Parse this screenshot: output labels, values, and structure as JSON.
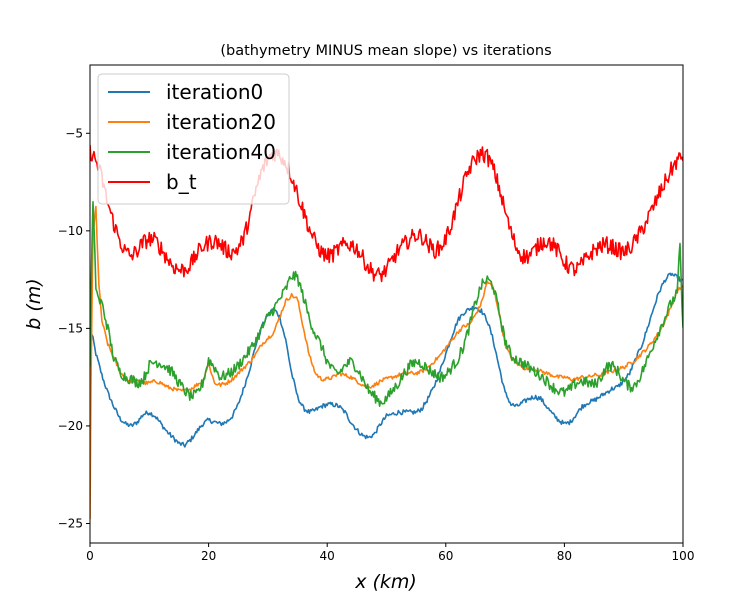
{
  "chart_data": {
    "type": "line",
    "title": "(bathymetry MINUS mean slope) vs iterations",
    "xlabel": "x (km)",
    "ylabel": "b (m)",
    "xlim": [
      0,
      100
    ],
    "ylim": [
      -26,
      -1.5
    ],
    "xticks": [
      "0",
      "20",
      "40",
      "60",
      "80",
      "100"
    ],
    "yticks": [
      "−25",
      "−20",
      "−15",
      "−10",
      "−5"
    ],
    "grid": false,
    "legend_position": "top-left",
    "series": [
      {
        "name": "iteration0",
        "color": "#1f77b4",
        "noise": 0.12,
        "x": [
          0,
          0.4,
          1,
          2,
          3,
          4,
          5,
          6,
          7,
          8,
          9,
          10,
          11,
          12,
          13,
          14,
          15,
          16,
          17,
          18,
          19,
          20,
          21,
          22,
          23,
          24,
          25,
          26,
          27,
          28,
          29,
          30,
          31,
          32,
          33,
          34,
          35,
          36,
          37,
          38,
          39,
          40,
          41,
          42,
          43,
          44,
          45,
          46,
          47,
          48,
          49,
          50,
          51,
          52,
          53,
          54,
          55,
          56,
          57,
          58,
          59,
          60,
          61,
          62,
          63,
          64,
          65,
          66,
          67,
          68,
          69,
          70,
          71,
          72,
          73,
          74,
          75,
          76,
          77,
          78,
          79,
          80,
          81,
          82,
          83,
          84,
          85,
          86,
          87,
          88,
          89,
          90,
          91,
          92,
          93,
          94,
          95,
          96,
          97,
          98,
          99,
          100
        ],
        "y": [
          -15.2,
          -15.4,
          -16.3,
          -17.4,
          -18.3,
          -19.0,
          -19.6,
          -19.9,
          -20.0,
          -19.8,
          -19.4,
          -19.3,
          -19.5,
          -19.9,
          -20.3,
          -20.6,
          -20.9,
          -21.0,
          -20.7,
          -20.3,
          -19.9,
          -19.7,
          -19.8,
          -19.9,
          -19.8,
          -19.5,
          -18.9,
          -18.0,
          -17.0,
          -15.8,
          -14.9,
          -14.3,
          -14.0,
          -14.4,
          -15.6,
          -17.3,
          -18.5,
          -19.1,
          -19.3,
          -19.2,
          -19.0,
          -18.9,
          -18.9,
          -19.0,
          -19.3,
          -19.8,
          -20.2,
          -20.5,
          -20.6,
          -20.4,
          -19.9,
          -19.5,
          -19.4,
          -19.3,
          -19.3,
          -19.3,
          -19.3,
          -19.1,
          -18.6,
          -18.0,
          -17.2,
          -16.3,
          -15.4,
          -14.6,
          -14.2,
          -14.0,
          -13.9,
          -14.1,
          -14.6,
          -15.6,
          -17.0,
          -18.3,
          -18.9,
          -19.0,
          -18.8,
          -18.6,
          -18.5,
          -18.6,
          -19.0,
          -19.4,
          -19.7,
          -19.9,
          -19.8,
          -19.4,
          -19.0,
          -18.8,
          -18.7,
          -18.5,
          -18.3,
          -18.1,
          -18.0,
          -17.7,
          -17.3,
          -16.6,
          -15.9,
          -15.0,
          -14.0,
          -13.1,
          -12.5,
          -12.2,
          -12.4,
          -12.6
        ]
      },
      {
        "name": "iteration20",
        "color": "#ff7f0e",
        "noise": 0.1,
        "x": [
          0,
          0.2,
          0.5,
          1,
          1.5,
          2,
          3,
          4,
          5,
          6,
          7,
          8,
          9,
          10,
          11,
          12,
          13,
          14,
          15,
          16,
          17,
          18,
          19,
          20,
          21,
          22,
          23,
          24,
          25,
          26,
          27,
          28,
          29,
          30,
          31,
          32,
          33,
          34,
          35,
          36,
          37,
          38,
          39,
          40,
          41,
          42,
          43,
          44,
          45,
          46,
          47,
          48,
          49,
          50,
          51,
          52,
          53,
          54,
          55,
          56,
          57,
          58,
          59,
          60,
          61,
          62,
          63,
          64,
          65,
          66,
          67,
          68,
          69,
          70,
          71,
          72,
          73,
          74,
          75,
          76,
          77,
          78,
          79,
          80,
          81,
          82,
          83,
          84,
          85,
          86,
          87,
          88,
          89,
          90,
          91,
          92,
          93,
          94,
          95,
          96,
          97,
          98,
          99,
          100
        ],
        "y": [
          -24.8,
          -16.5,
          -10.2,
          -8.8,
          -12.8,
          -14.6,
          -15.8,
          -16.5,
          -17.2,
          -17.6,
          -17.7,
          -17.7,
          -17.8,
          -17.8,
          -17.7,
          -17.8,
          -18.0,
          -18.1,
          -18.2,
          -18.2,
          -18.1,
          -17.9,
          -17.7,
          -16.8,
          -17.8,
          -17.9,
          -17.8,
          -17.6,
          -17.3,
          -17.0,
          -16.7,
          -16.3,
          -15.8,
          -15.5,
          -15.2,
          -14.4,
          -13.6,
          -13.3,
          -13.5,
          -15.0,
          -16.4,
          -17.3,
          -17.6,
          -17.6,
          -17.5,
          -17.3,
          -17.4,
          -17.5,
          -17.7,
          -17.9,
          -18.0,
          -17.9,
          -17.7,
          -17.6,
          -17.5,
          -17.4,
          -17.3,
          -17.3,
          -17.3,
          -17.2,
          -17.0,
          -16.7,
          -16.4,
          -16.0,
          -15.6,
          -15.2,
          -14.9,
          -14.8,
          -14.3,
          -13.7,
          -12.6,
          -12.9,
          -14.2,
          -15.8,
          -16.5,
          -16.8,
          -17.0,
          -17.1,
          -17.1,
          -17.2,
          -17.3,
          -17.4,
          -17.5,
          -17.5,
          -17.6,
          -17.6,
          -17.5,
          -17.5,
          -17.4,
          -17.4,
          -17.3,
          -17.2,
          -17.1,
          -17.0,
          -16.8,
          -16.6,
          -16.3,
          -16.0,
          -15.6,
          -15.2,
          -14.6,
          -13.9,
          -13.1,
          -12.8
        ]
      },
      {
        "name": "iteration40",
        "color": "#2ca02c",
        "noise": 0.28,
        "x": [
          0,
          0.2,
          0.5,
          1,
          1.5,
          2,
          3,
          4,
          5,
          6,
          7,
          8,
          9,
          10,
          11,
          12,
          13,
          14,
          15,
          16,
          17,
          18,
          19,
          20,
          21,
          22,
          23,
          24,
          25,
          26,
          27,
          28,
          29,
          30,
          31,
          32,
          33,
          34,
          35,
          36,
          37,
          38,
          39,
          40,
          41,
          42,
          43,
          44,
          45,
          46,
          47,
          48,
          49,
          50,
          51,
          52,
          53,
          54,
          55,
          56,
          57,
          58,
          59,
          60,
          61,
          62,
          63,
          64,
          65,
          66,
          67,
          68,
          69,
          70,
          71,
          72,
          73,
          74,
          75,
          76,
          77,
          78,
          79,
          80,
          81,
          82,
          83,
          84,
          85,
          86,
          87,
          88,
          89,
          90,
          91,
          92,
          93,
          94,
          95,
          96,
          97,
          98,
          99,
          99.5,
          100
        ],
        "y": [
          -17.2,
          -12.5,
          -8.6,
          -12.8,
          -13.6,
          -13.7,
          -15.0,
          -16.5,
          -17.2,
          -17.5,
          -17.6,
          -17.8,
          -17.6,
          -16.9,
          -16.7,
          -16.8,
          -17.0,
          -17.3,
          -17.8,
          -18.2,
          -18.5,
          -18.4,
          -17.8,
          -16.6,
          -17.0,
          -17.5,
          -17.4,
          -17.2,
          -16.9,
          -16.5,
          -16.1,
          -15.6,
          -15.0,
          -14.4,
          -14.0,
          -13.5,
          -13.0,
          -12.3,
          -12.4,
          -13.4,
          -14.5,
          -15.3,
          -15.9,
          -16.7,
          -17.2,
          -17.3,
          -16.9,
          -16.7,
          -17.0,
          -17.6,
          -18.2,
          -18.5,
          -18.8,
          -18.6,
          -18.2,
          -17.8,
          -17.3,
          -16.9,
          -16.7,
          -16.8,
          -17.1,
          -17.3,
          -17.5,
          -17.4,
          -17.0,
          -16.6,
          -15.9,
          -14.9,
          -13.7,
          -12.8,
          -12.5,
          -12.8,
          -14.2,
          -15.6,
          -16.4,
          -16.6,
          -16.8,
          -17.0,
          -17.2,
          -17.4,
          -17.7,
          -18.0,
          -18.2,
          -18.3,
          -18.1,
          -17.8,
          -17.7,
          -17.8,
          -17.9,
          -17.6,
          -17.0,
          -16.9,
          -17.2,
          -17.7,
          -18.0,
          -17.9,
          -17.3,
          -16.6,
          -15.8,
          -15.1,
          -14.4,
          -13.7,
          -13.2,
          -10.8,
          -15.2
        ]
      },
      {
        "name": "b_t",
        "color": "#ff0000",
        "noise": 0.42,
        "x": [
          0,
          1,
          2,
          3,
          4,
          5,
          6,
          7,
          8,
          9,
          10,
          11,
          12,
          13,
          14,
          15,
          16,
          17,
          18,
          19,
          20,
          21,
          22,
          23,
          24,
          25,
          26,
          27,
          28,
          29,
          30,
          31,
          32,
          33,
          34,
          35,
          36,
          37,
          38,
          39,
          40,
          41,
          42,
          43,
          44,
          45,
          46,
          47,
          48,
          49,
          50,
          51,
          52,
          53,
          54,
          55,
          56,
          57,
          58,
          59,
          60,
          61,
          62,
          63,
          64,
          65,
          66,
          67,
          68,
          69,
          70,
          71,
          72,
          73,
          74,
          75,
          76,
          77,
          78,
          79,
          80,
          81,
          82,
          83,
          84,
          85,
          86,
          87,
          88,
          89,
          90,
          91,
          92,
          93,
          94,
          95,
          96,
          97,
          98,
          99,
          100
        ],
        "y": [
          -5.9,
          -6.4,
          -7.3,
          -8.6,
          -9.6,
          -10.5,
          -11.1,
          -11.3,
          -11.0,
          -10.6,
          -10.4,
          -10.5,
          -10.9,
          -11.4,
          -11.8,
          -12.0,
          -12.0,
          -11.7,
          -11.2,
          -10.8,
          -10.6,
          -10.5,
          -10.7,
          -11.0,
          -11.1,
          -10.9,
          -10.3,
          -9.2,
          -7.9,
          -6.9,
          -6.3,
          -6.0,
          -6.1,
          -6.5,
          -7.2,
          -8.1,
          -9.0,
          -9.9,
          -10.6,
          -11.1,
          -11.3,
          -11.2,
          -10.9,
          -10.7,
          -10.7,
          -10.9,
          -11.4,
          -11.9,
          -12.2,
          -12.3,
          -12.0,
          -11.5,
          -11.0,
          -10.7,
          -10.4,
          -10.2,
          -10.3,
          -10.7,
          -11.0,
          -10.9,
          -10.4,
          -9.6,
          -8.6,
          -7.6,
          -6.8,
          -6.3,
          -6.0,
          -6.2,
          -6.8,
          -7.8,
          -9.0,
          -10.1,
          -10.9,
          -11.3,
          -11.3,
          -11.0,
          -10.6,
          -10.5,
          -10.7,
          -11.1,
          -11.6,
          -11.9,
          -12.0,
          -11.7,
          -11.3,
          -11.0,
          -10.8,
          -10.7,
          -10.8,
          -11.0,
          -11.1,
          -10.9,
          -10.5,
          -10.0,
          -9.4,
          -8.8,
          -8.1,
          -7.5,
          -6.9,
          -6.4,
          -6.2
        ]
      }
    ]
  }
}
